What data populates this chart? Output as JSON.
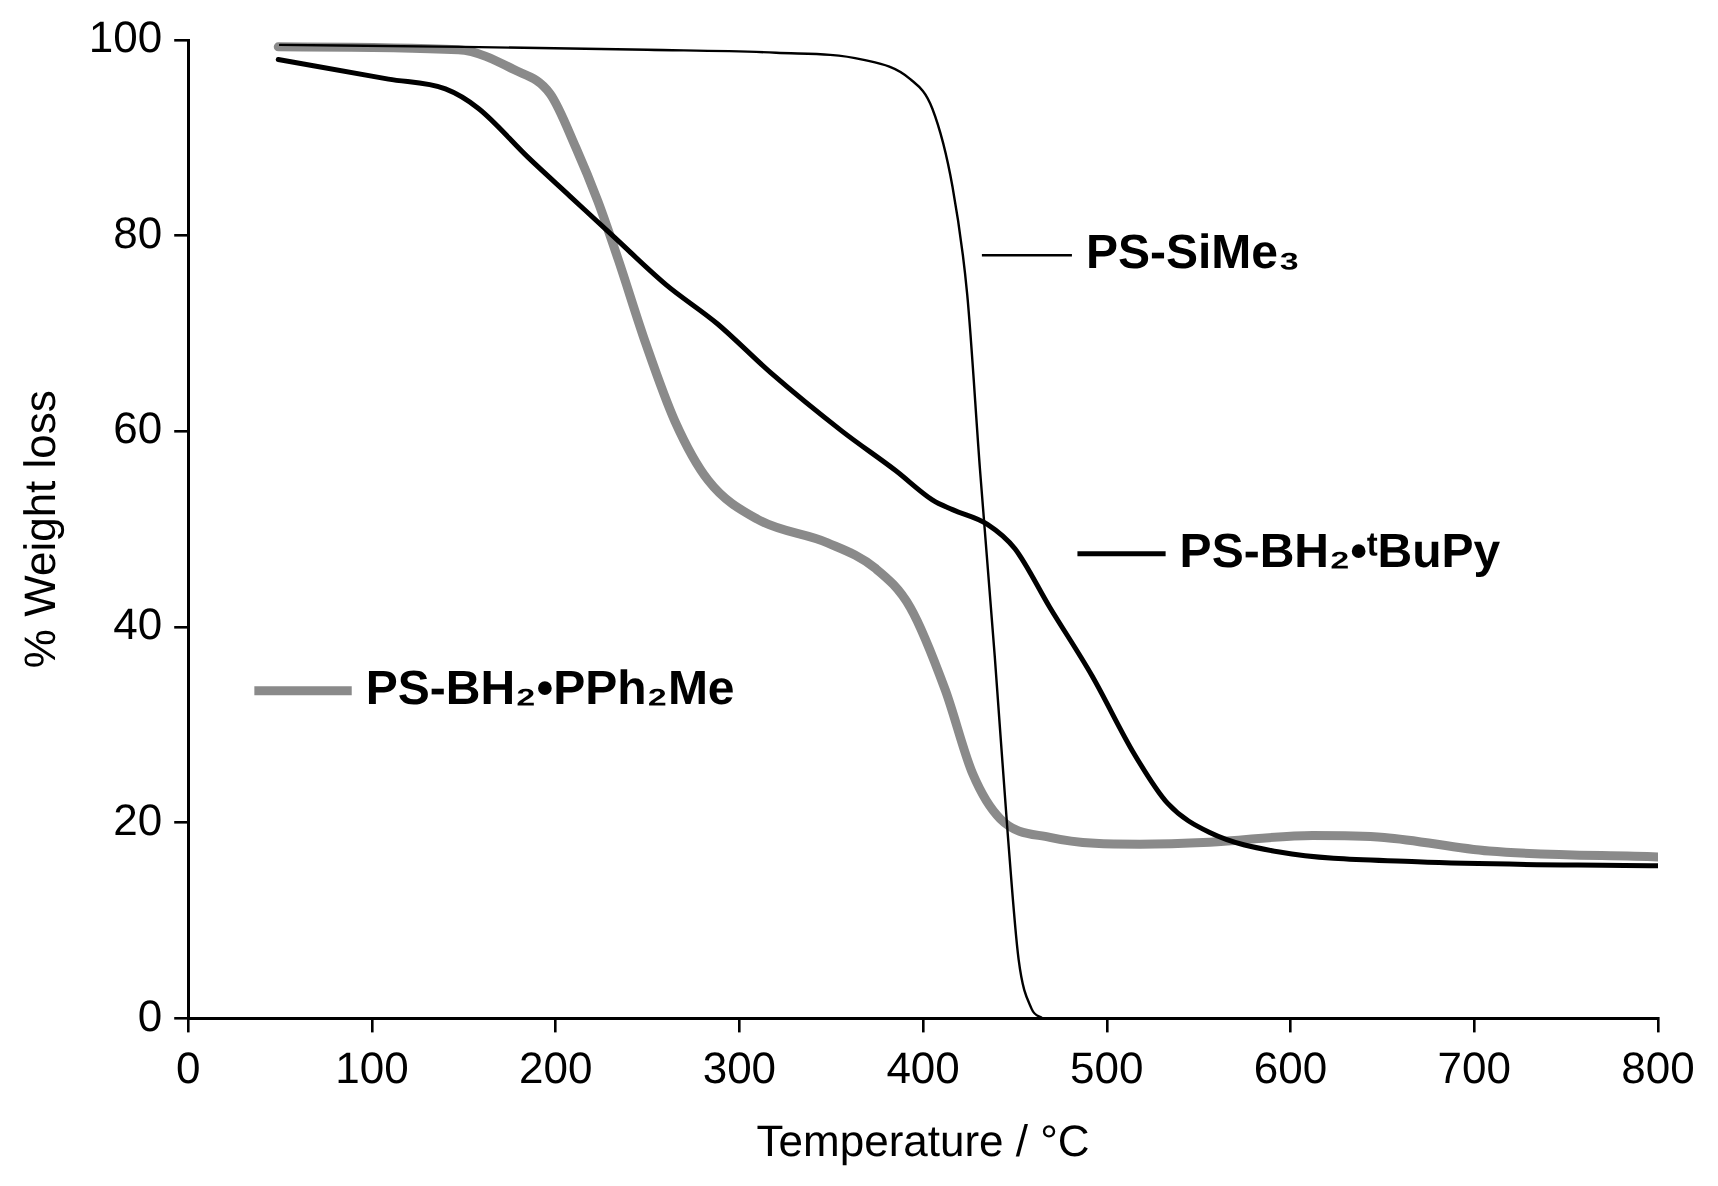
{
  "chart_data": {
    "type": "line",
    "xlabel": "Temperature / °C",
    "ylabel": "% Weight loss",
    "xlim": [
      0,
      800
    ],
    "xticks": [
      0,
      100,
      200,
      300,
      400,
      500,
      600,
      700,
      800
    ],
    "ylim": [
      0,
      100
    ],
    "yticks": [
      0,
      20,
      40,
      60,
      80,
      100
    ],
    "grid": false,
    "legend": "right",
    "marker": "none",
    "line_style": "solid",
    "series": [
      {
        "name": "PS-SiMe₃",
        "color": "#000000",
        "x": [
          50,
          150,
          250,
          320,
          367,
          393,
          405,
          416,
          424,
          431,
          439,
          446,
          452,
          459,
          465
        ],
        "values": [
          99.5,
          99.3,
          99,
          98.7,
          98,
          96,
          93,
          85,
          74,
          56,
          37,
          19,
          6,
          1,
          0
        ]
      },
      {
        "name": "PS-BH₂•ᵗBuPy",
        "color": "#000000",
        "x": [
          49,
          109,
          140,
          158,
          185,
          208,
          231,
          260,
          288,
          317,
          356,
          385,
          405,
          416,
          435,
          450,
          469,
          492,
          515,
          533,
          556,
          594,
          669,
          800
        ],
        "values": [
          98,
          96,
          95,
          93,
          88,
          84,
          80,
          75,
          71,
          66,
          60,
          56,
          53,
          52,
          50.5,
          48,
          42,
          35,
          27,
          22,
          19,
          17,
          16,
          15.6
        ]
      },
      {
        "name": "PS-BH₂•PPh₂Me",
        "color": "#8a8a8a",
        "x": [
          49,
          147,
          177,
          197,
          211,
          223,
          234,
          249,
          265,
          283,
          310,
          348,
          374,
          393,
          412,
          427,
          442,
          469,
          518,
          556,
          612,
          651,
          708,
          800
        ],
        "values": [
          99.3,
          99,
          97,
          94.5,
          89,
          83.5,
          77.6,
          69,
          61,
          55,
          51,
          48.6,
          46,
          42,
          33.6,
          25,
          20.4,
          18.5,
          17.8,
          18,
          18.7,
          18.5,
          17.1,
          16.5
        ]
      }
    ]
  }
}
